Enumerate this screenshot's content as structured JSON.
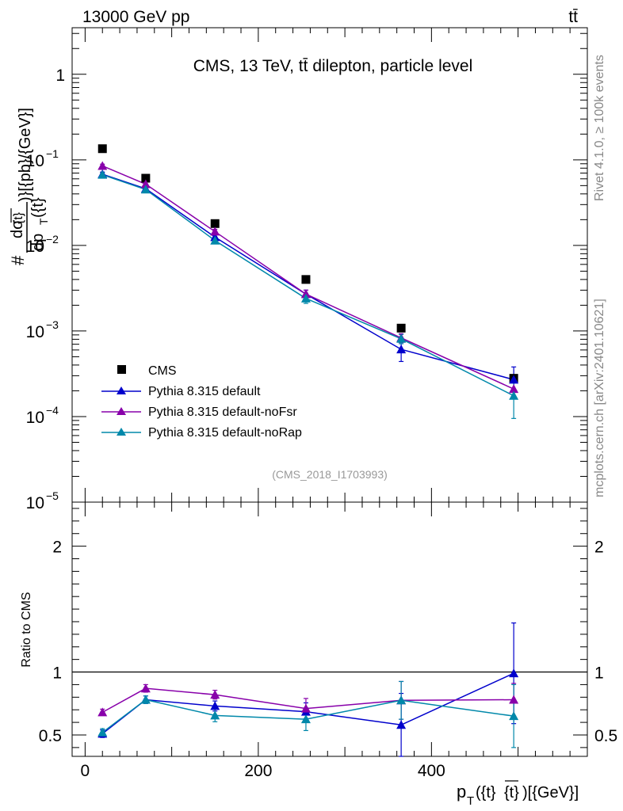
{
  "header": {
    "left": "13000 GeV pp",
    "right": "tt̄"
  },
  "side_labels": {
    "rivet": "Rivet 4.1.0, ≥ 100k events",
    "mcplots": "mcplots.cern.ch [arXiv:2401.10621]"
  },
  "chart_data": [
    {
      "panel": "main",
      "type": "scatter",
      "title": "CMS, 13 TeV, tt̄ dilepton, particle level",
      "watermark": "(CMS_2018_I1703993)",
      "ylabel": "#frac{dσ}{dp_T({t}{t̄})}[{pb}/{GeV}]",
      "ylabel_parts": {
        "prefix": "#",
        "numerator": "dσ",
        "denominator": "dp",
        "sub": "T",
        "denominator_tail": "({t}",
        "overbar_piece": "{t}",
        "tail": ")}[{pb}/{GeV}]"
      },
      "yscale": "log",
      "ylim": [
        1e-05,
        3.5
      ],
      "xlim": [
        -15,
        580
      ],
      "y_ticks": [
        {
          "v": 1,
          "label": "1"
        },
        {
          "v": 0.1,
          "label": "10",
          "exp": "−1"
        },
        {
          "v": 0.01,
          "label": "10",
          "exp": "−2"
        },
        {
          "v": 0.001,
          "label": "10",
          "exp": "−3"
        },
        {
          "v": 0.0001,
          "label": "10",
          "exp": "−4"
        },
        {
          "v": 1e-05,
          "label": "10",
          "exp": "−5"
        }
      ],
      "legend_position": "bottom-left",
      "series": [
        {
          "name": "CMS",
          "marker": "square",
          "color": "#000000",
          "x": [
            20,
            70,
            150,
            255,
            365,
            495
          ],
          "y": [
            0.135,
            0.061,
            0.018,
            0.004,
            0.00108,
            0.00028
          ]
        },
        {
          "name": "Pythia 8.315 default",
          "marker": "triangle",
          "color": "#0000cc",
          "x": [
            20,
            70,
            150,
            255,
            365,
            495
          ],
          "y": [
            0.068,
            0.046,
            0.0125,
            0.0027,
            0.00061,
            0.00027
          ],
          "err": [
            0.004,
            0.003,
            0.0009,
            0.0003,
            0.00017,
            0.00011
          ]
        },
        {
          "name": "Pythia 8.315 default-noFsr",
          "marker": "triangle",
          "color": "#8800aa",
          "x": [
            20,
            70,
            150,
            255,
            365,
            495
          ],
          "y": [
            0.085,
            0.052,
            0.0145,
            0.0027,
            0.00083,
            0.00021
          ],
          "err": [
            0.004,
            0.003,
            0.0009,
            0.0003,
            0.0001,
            4e-05
          ]
        },
        {
          "name": "Pythia 8.315 default-noRap",
          "marker": "triangle",
          "color": "#0088aa",
          "x": [
            20,
            70,
            150,
            255,
            365,
            495
          ],
          "y": [
            0.067,
            0.045,
            0.0114,
            0.0024,
            0.00081,
            0.000175
          ],
          "err": [
            0.004,
            0.003,
            0.0008,
            0.0003,
            0.0001,
            8e-05
          ]
        }
      ]
    },
    {
      "panel": "ratio",
      "type": "line",
      "ylabel": "Ratio to CMS",
      "ylim": [
        0.33,
        2.35
      ],
      "xlim": [
        -15,
        580
      ],
      "y_ticks": [
        {
          "v": 0.5,
          "label": "0.5"
        },
        {
          "v": 1,
          "label": "1"
        },
        {
          "v": 2,
          "label": "2"
        }
      ],
      "x_ticks": [
        {
          "v": 0,
          "label": "0"
        },
        {
          "v": 200,
          "label": "200"
        },
        {
          "v": 400,
          "label": "400"
        }
      ],
      "xlabel": "p_T({t}{t̄})[{GeV}]",
      "xlabel_parts": {
        "main": "p",
        "sub": "T",
        "tail_a": "({t}",
        "overbar_piece": "{t}",
        "tail_b": ")[{GeV}]"
      },
      "reference_line": 1,
      "series": [
        {
          "name": "Pythia 8.315 default",
          "color": "#0000cc",
          "x": [
            20,
            70,
            150,
            255,
            365,
            495
          ],
          "y": [
            0.51,
            0.78,
            0.73,
            0.685,
            0.58,
            0.99
          ],
          "err": [
            0.03,
            0.03,
            0.04,
            0.07,
            0.25,
            0.4
          ]
        },
        {
          "name": "Pythia 8.315 default-noFsr",
          "color": "#8800aa",
          "x": [
            20,
            70,
            150,
            255,
            365,
            495
          ],
          "y": [
            0.68,
            0.87,
            0.82,
            0.71,
            0.775,
            0.78
          ],
          "err": [
            0.025,
            0.03,
            0.035,
            0.08,
            0.15,
            0.13
          ]
        },
        {
          "name": "Pythia 8.315 default-noRap",
          "color": "#0088aa",
          "x": [
            20,
            70,
            150,
            255,
            365,
            495
          ],
          "y": [
            0.52,
            0.78,
            0.655,
            0.625,
            0.775,
            0.65
          ],
          "err": [
            0.03,
            0.03,
            0.05,
            0.09,
            0.15,
            0.25
          ]
        }
      ]
    }
  ]
}
